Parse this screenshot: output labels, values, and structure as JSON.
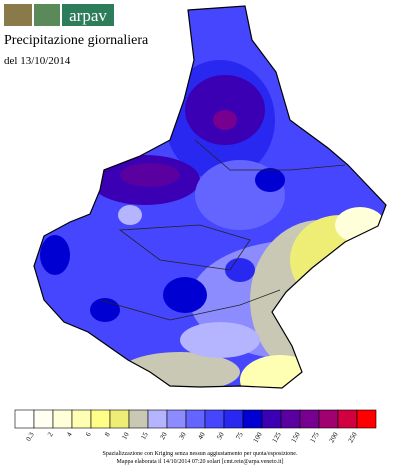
{
  "logo": {
    "text": "arpav"
  },
  "header": {
    "title": "Precipitazione giornaliera",
    "date": "del 13/10/2014"
  },
  "legend": {
    "labels": [
      "0.3",
      "2",
      "4",
      "6",
      "8",
      "10",
      "15",
      "20",
      "30",
      "40",
      "50",
      "75",
      "100",
      "125",
      "150",
      "175",
      "200",
      "250"
    ],
    "colors": [
      "#ffffff",
      "#fffff2",
      "#ffffd9",
      "#ffffb3",
      "#ffff88",
      "#eeee77",
      "#c8c8b4",
      "#b4b4ff",
      "#8c8cff",
      "#6464ff",
      "#4646ff",
      "#2828f0",
      "#0000d2",
      "#3c00b4",
      "#5a00a0",
      "#780090",
      "#a00070",
      "#d20040",
      "#ff0000"
    ]
  },
  "footer": {
    "lines": [
      "Spazializzazione con Kriging senza nessun aggiustamento per quota/esposizione.",
      "Mappa elaborata il 14/10/2014 07:20 solari [cmt.rete@arpa.veneto.it]"
    ]
  }
}
